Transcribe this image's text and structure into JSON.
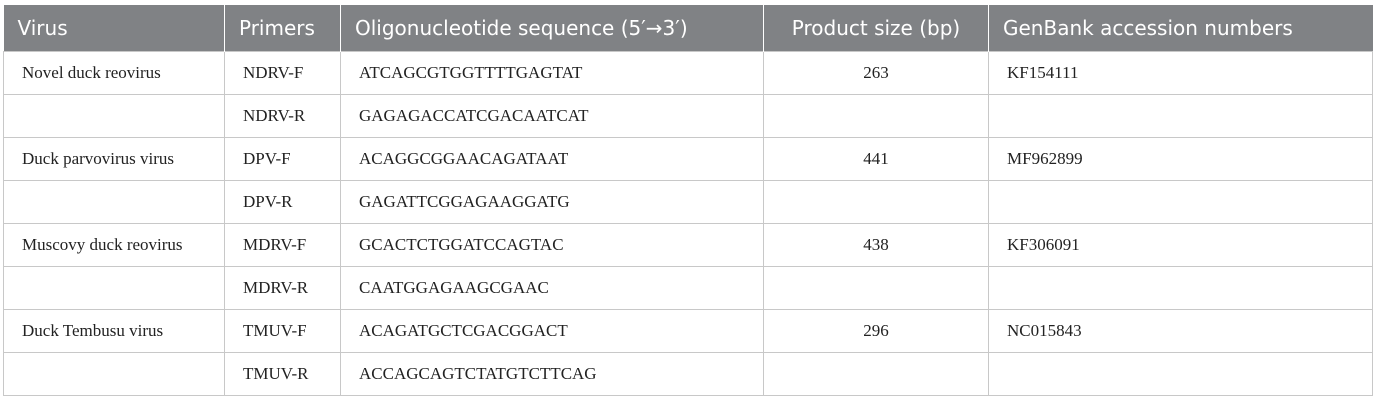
{
  "table": {
    "header": [
      "Virus",
      "Primers",
      "Oligonucleotide sequence (5′→3′)",
      "Product size (bp)",
      "GenBank accession numbers"
    ],
    "rows": [
      [
        "Novel duck reovirus",
        "NDRV-F",
        "ATCAGCGTGGTTTTGAGTAT",
        263,
        "KF154111"
      ],
      [
        null,
        "NDRV-R",
        "GAGAGACCATCGACAATCAT",
        null,
        null
      ],
      [
        "Duck parvovirus virus",
        "DPV-F",
        "ACAGGCGGAACAGATAAT",
        441,
        "MF962899"
      ],
      [
        null,
        "DPV-R",
        "GAGATTCGGAGAAGGATG",
        null,
        null
      ],
      [
        "Muscovy duck reovirus",
        "MDRV-F",
        "GCACTCTGGATCCAGTAC",
        438,
        "KF306091"
      ],
      [
        null,
        "MDRV-R",
        "CAATGGAGAAGCGAAC",
        null,
        null
      ],
      [
        "Duck Tembusu virus",
        "TMUV-F",
        "ACAGATGCTCGACGGACT",
        296,
        "NC015843"
      ],
      [
        null,
        "TMUV-R",
        "ACCAGCAGTCTATGTCTTCAG",
        null,
        null
      ]
    ]
  }
}
